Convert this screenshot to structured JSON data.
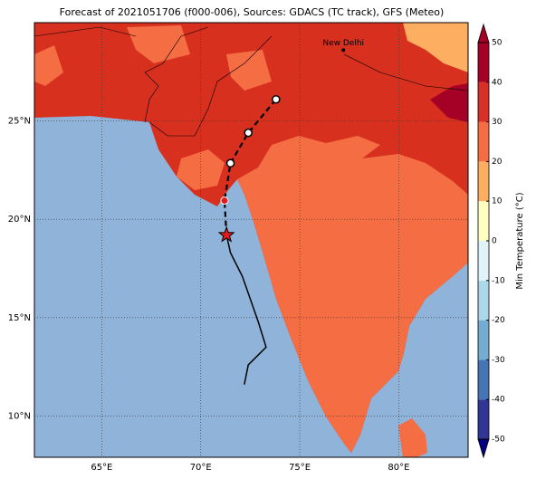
{
  "chart_data": {
    "type": "map",
    "title": "Forecast of 2021051706 (f000-006), Sources: GDACS (TC track), GFS (Meteo)",
    "xlim": [
      61.6,
      83.5
    ],
    "ylim": [
      7.9,
      30
    ],
    "xticks": [
      {
        "value": 65,
        "label": "65°E"
      },
      {
        "value": 70,
        "label": "70°E"
      },
      {
        "value": 75,
        "label": "75°E"
      },
      {
        "value": 80,
        "label": "80°E"
      }
    ],
    "yticks": [
      {
        "value": 10,
        "label": "10°N"
      },
      {
        "value": 15,
        "label": "15°N"
      },
      {
        "value": 20,
        "label": "20°N"
      },
      {
        "value": 25,
        "label": "25°N"
      }
    ],
    "grid": true,
    "colorbar": {
      "label": "Min Temperature (°C)",
      "lim": [
        -50,
        50
      ],
      "ticks": [
        -50,
        -40,
        -30,
        -20,
        -10,
        0,
        10,
        20,
        30,
        40,
        50
      ],
      "colors": [
        "#313695",
        "#4575b4",
        "#74add1",
        "#abd9e9",
        "#e0f3f8",
        "#ffffbf",
        "#fdae61",
        "#f46d43",
        "#d73027",
        "#a50026"
      ]
    },
    "city": {
      "name": "New Delhi",
      "lon": 77.2,
      "lat": 28.6
    },
    "past_track": {
      "lon": [
        72.2,
        72.4,
        73.3,
        72.9,
        72.1,
        71.5,
        71.3
      ],
      "lat": [
        11.6,
        12.6,
        13.5,
        14.8,
        17.1,
        18.3,
        19.2
      ]
    },
    "forecast_track": {
      "lon": [
        71.3,
        71.2,
        71.5,
        72.4,
        73.8
      ],
      "lat": [
        19.2,
        20.95,
        22.85,
        24.4,
        26.1
      ]
    },
    "current": {
      "lon": 71.3,
      "lat": 19.2
    }
  }
}
